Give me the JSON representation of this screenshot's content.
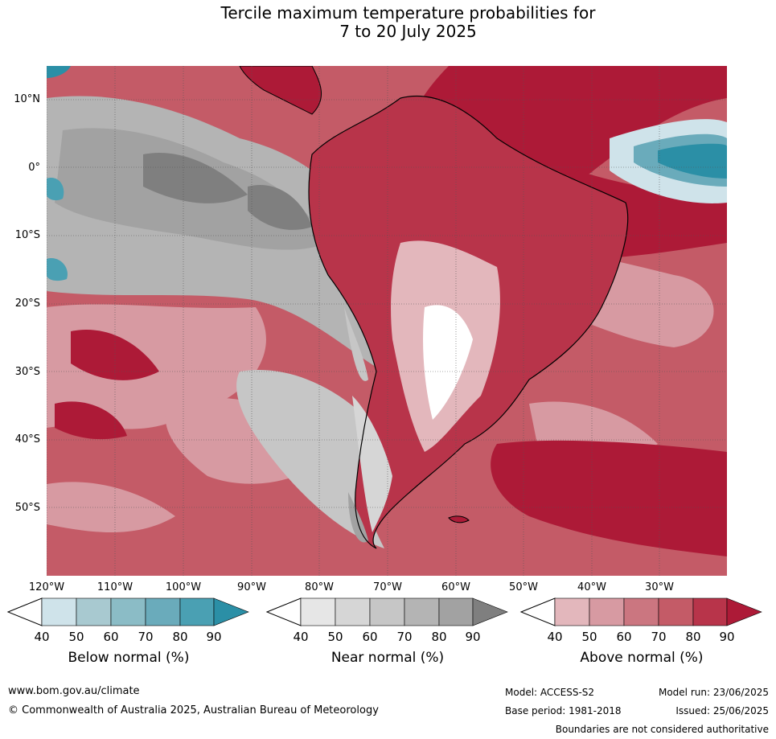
{
  "title": {
    "line1": "Tercile maximum temperature probabilities for",
    "line2": "7 to 20 July 2025"
  },
  "lat_labels": [
    "10°N",
    "0°",
    "10°S",
    "20°S",
    "30°S",
    "40°S",
    "50°S"
  ],
  "lon_labels": [
    "120°W",
    "110°W",
    "100°W",
    "90°W",
    "80°W",
    "70°W",
    "60°W",
    "50°W",
    "40°W",
    "30°W"
  ],
  "legends": [
    {
      "title": "Below normal (%)",
      "ticks": [
        "40",
        "50",
        "60",
        "70",
        "80",
        "90"
      ],
      "colors": [
        "#cfe3ea",
        "#a8c9d0",
        "#8bbcc6",
        "#6aabbb",
        "#4aa0b3",
        "#2b8fa6"
      ]
    },
    {
      "title": "Near normal (%)",
      "ticks": [
        "40",
        "50",
        "60",
        "70",
        "80",
        "90"
      ],
      "colors": [
        "#e6e6e6",
        "#d6d6d6",
        "#c6c6c6",
        "#b4b4b4",
        "#a2a2a2",
        "#7f7f7f"
      ]
    },
    {
      "title": "Above normal (%)",
      "ticks": [
        "40",
        "50",
        "60",
        "70",
        "80",
        "90"
      ],
      "colors": [
        "#e3b7bc",
        "#d79aa2",
        "#cb7680",
        "#c45b67",
        "#b8344a",
        "#ad1a37"
      ]
    }
  ],
  "footer": {
    "url": "www.bom.gov.au/climate",
    "copyright": "© Commonwealth of Australia 2025, Australian Bureau of Meteorology",
    "model": "Model: ACCESS-S2",
    "base_period": "Base period: 1981-2018",
    "model_run": "Model run: 23/06/2025",
    "issued": "Issued: 25/06/2025",
    "disclaimer": "Boundaries are not considered authoritative"
  }
}
